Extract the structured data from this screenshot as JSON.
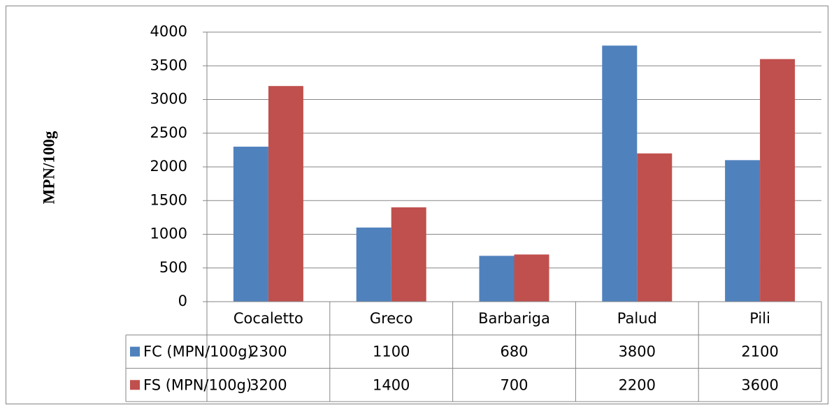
{
  "chart_data": {
    "type": "bar",
    "y_label": "MPN/100g",
    "categories": [
      "Cocaletto",
      "Greco",
      "Barbariga",
      "Palud",
      "Pili"
    ],
    "series": [
      {
        "name": "FC (MPN/100g)",
        "color": "#4f81bd",
        "values": [
          2300,
          1100,
          680,
          3800,
          2100
        ]
      },
      {
        "name": "FS (MPN/100g)",
        "color": "#c0504d",
        "values": [
          3200,
          1400,
          700,
          2200,
          3600
        ]
      }
    ],
    "ylim": [
      0,
      4000
    ],
    "yticks": [
      0,
      500,
      1000,
      1500,
      2000,
      2500,
      3000,
      3500,
      4000
    ],
    "grid": true,
    "data_table": true
  }
}
